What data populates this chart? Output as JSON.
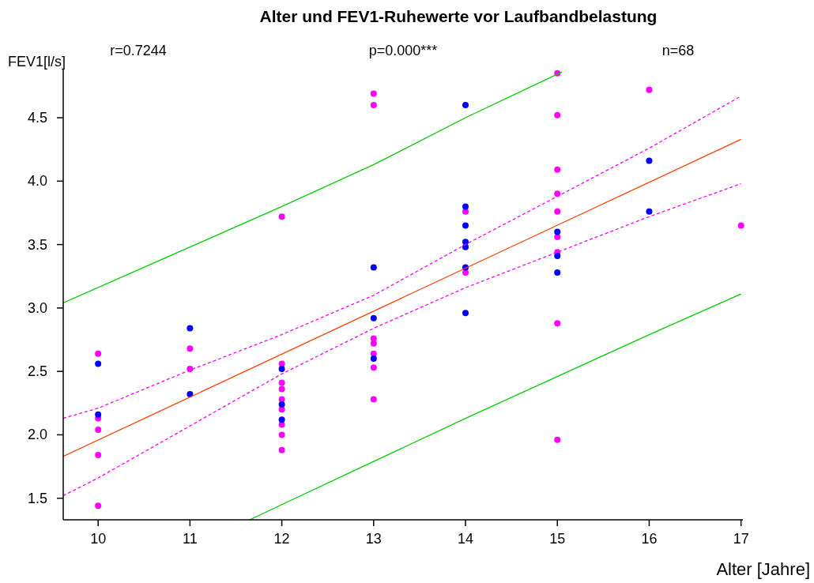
{
  "chart_data": {
    "type": "scatter",
    "title": "Alter und FEV1-Ruhewerte vor Laufbandbelastung",
    "xlabel": "Alter [Jahre]",
    "ylabel": "FEV1[l/s]",
    "annotations": [
      "r=0.7244",
      "p=0.000***",
      "n=68"
    ],
    "xlim": [
      9.62,
      17.02
    ],
    "ylim": [
      1.33,
      4.88
    ],
    "xticks": [
      10,
      11,
      12,
      13,
      14,
      15,
      16,
      17
    ],
    "yticks": [
      1.5,
      {
        "value": 2,
        "label": "2.0"
      },
      2.5,
      {
        "value": 3,
        "label": "3.0"
      },
      3.5,
      {
        "value": 4,
        "label": "4.0"
      },
      4.5
    ],
    "grid": false,
    "marker": "circle",
    "series": [
      {
        "color": "#ff00ff",
        "x": [
          10,
          10,
          10,
          10,
          10,
          11,
          11,
          12,
          12,
          12,
          12,
          12,
          12,
          12,
          12,
          12,
          13,
          13,
          13,
          13,
          13,
          13,
          13,
          14,
          14,
          15,
          15,
          15,
          15,
          15,
          15,
          15,
          15,
          15,
          16,
          17
        ],
        "values": [
          2.64,
          2.13,
          2.04,
          1.84,
          1.44,
          2.68,
          2.52,
          3.72,
          2.56,
          2.41,
          2.36,
          2.28,
          2.2,
          2.08,
          2.0,
          1.88,
          4.69,
          4.6,
          2.76,
          2.72,
          2.64,
          2.53,
          2.28,
          3.76,
          3.28,
          4.85,
          4.52,
          4.09,
          3.9,
          3.76,
          3.56,
          3.44,
          2.88,
          1.96,
          4.72,
          3.65
        ]
      },
      {
        "color": "#0000ff",
        "x": [
          10,
          10,
          11,
          11,
          12,
          12,
          12,
          13,
          13,
          13,
          14,
          14,
          14,
          14,
          14,
          14,
          14,
          15,
          15,
          15,
          16,
          16
        ],
        "values": [
          2.56,
          2.16,
          2.84,
          2.32,
          2.52,
          2.24,
          2.12,
          3.32,
          2.92,
          2.6,
          4.6,
          3.8,
          3.65,
          3.52,
          3.48,
          3.32,
          2.96,
          3.6,
          3.41,
          3.28,
          4.16,
          3.76
        ]
      },
      {
        "type": "line",
        "color": "#ff4000",
        "marker": "none",
        "x": [
          9.62,
          17
        ],
        "values": [
          1.83,
          4.33
        ]
      },
      {
        "type": "line",
        "color": "#ff00ff",
        "marker": "none",
        "line_style": "dashed",
        "x": [
          9.62,
          10,
          11,
          12,
          13,
          14,
          15,
          16,
          17
        ],
        "values": [
          2.13,
          2.21,
          2.51,
          2.79,
          3.1,
          3.5,
          3.88,
          4.26,
          4.67
        ]
      },
      {
        "type": "line",
        "color": "#ff00ff",
        "marker": "none",
        "line_style": "dashed",
        "x": [
          9.62,
          10,
          11,
          12,
          13,
          14,
          15,
          16,
          17
        ],
        "values": [
          1.52,
          1.66,
          2.07,
          2.48,
          2.84,
          3.16,
          3.44,
          3.72,
          3.98
        ]
      },
      {
        "type": "line",
        "color": "#00cc00",
        "marker": "none",
        "x": [
          9.62,
          12,
          13,
          14,
          15.05
        ],
        "values": [
          3.04,
          3.8,
          4.13,
          4.5,
          4.86
        ]
      },
      {
        "type": "line",
        "color": "#00cc00",
        "marker": "none",
        "x": [
          11.65,
          12,
          13,
          14,
          15,
          16,
          17
        ],
        "values": [
          1.33,
          1.45,
          1.79,
          2.13,
          2.46,
          2.79,
          3.11
        ]
      }
    ]
  }
}
